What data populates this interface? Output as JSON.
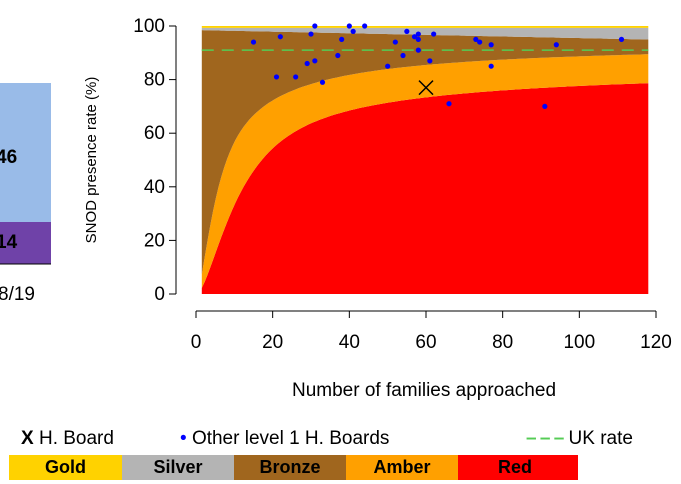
{
  "colors": {
    "gold": "#ffd200",
    "silver": "#b4b4b4",
    "bronze": "#a0661e",
    "amber": "#ffa000",
    "red": "#ff0000",
    "points": "#0000ff",
    "uk_rate": "#55cc55",
    "left_panel_top": "#99bbe8",
    "left_panel_bottom": "#6f42a8"
  },
  "left_panel": {
    "label_top": "46",
    "label_bottom": "14",
    "x_tick": "8/19"
  },
  "chart_data": {
    "type": "scatter",
    "title": "",
    "xlabel": "Number of families approached",
    "ylabel": "SNOD presence rate (%)",
    "xlim": [
      0,
      120
    ],
    "ylim": [
      0,
      100
    ],
    "xticks": [
      "0",
      "20",
      "40",
      "60",
      "80",
      "100",
      "120"
    ],
    "yticks": [
      "0",
      "20",
      "40",
      "60",
      "80",
      "100"
    ],
    "grid": false,
    "uk_rate": 91,
    "series": [
      {
        "name": "H. Board",
        "marker": "X",
        "points": [
          [
            60,
            77
          ]
        ]
      },
      {
        "name": "Other level 1 H. Boards",
        "marker": "dot",
        "points": [
          [
            15,
            94
          ],
          [
            21,
            81
          ],
          [
            22,
            96
          ],
          [
            26,
            81
          ],
          [
            29,
            86
          ],
          [
            30,
            97
          ],
          [
            31,
            100
          ],
          [
            31,
            87
          ],
          [
            33,
            79
          ],
          [
            37,
            89
          ],
          [
            38,
            95
          ],
          [
            40,
            100
          ],
          [
            41,
            98
          ],
          [
            44,
            100
          ],
          [
            50,
            85
          ],
          [
            52,
            94
          ],
          [
            54,
            89
          ],
          [
            55,
            98
          ],
          [
            57,
            96
          ],
          [
            58,
            95
          ],
          [
            58,
            91
          ],
          [
            58,
            97
          ],
          [
            61,
            87
          ],
          [
            62,
            97
          ],
          [
            66,
            71
          ],
          [
            73,
            95
          ],
          [
            74,
            94
          ],
          [
            77,
            93
          ],
          [
            77,
            85
          ],
          [
            91,
            70
          ],
          [
            94,
            93
          ],
          [
            111,
            95
          ]
        ]
      }
    ],
    "bands": [
      "Gold",
      "Silver",
      "Bronze",
      "Amber",
      "Red"
    ],
    "legend": {
      "marker_x": "X",
      "h_board": "H. Board",
      "dot": "•",
      "other": "Other level 1 H. Boards",
      "uk_line": "– – –",
      "uk": "UK rate"
    }
  }
}
